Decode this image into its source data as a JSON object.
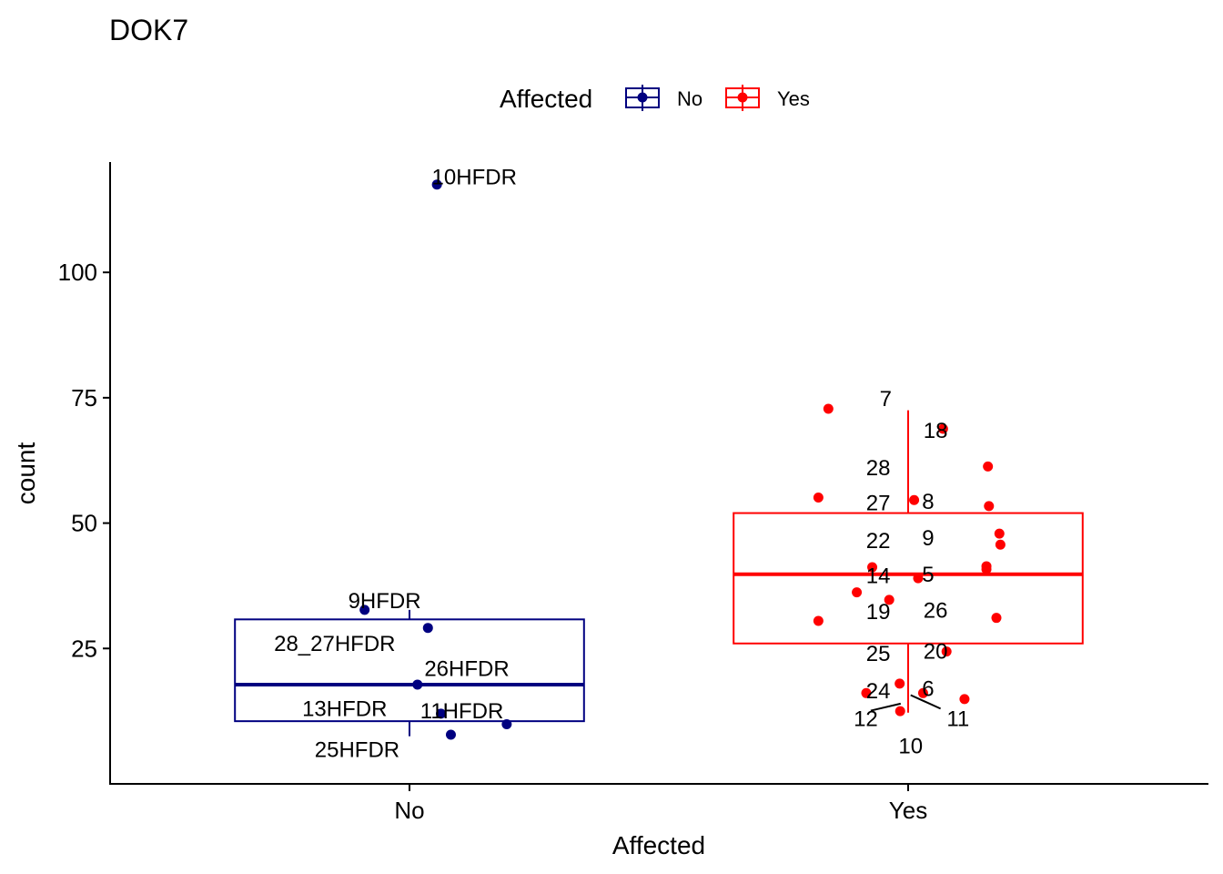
{
  "chart_data": {
    "type": "box",
    "title": "DOK7",
    "xlabel": "Affected",
    "ylabel": "count",
    "ylim": [
      -2,
      122
    ],
    "yticks": [
      25,
      50,
      75,
      100
    ],
    "grid": false,
    "legend": {
      "title": "Affected",
      "position": "top",
      "entries": [
        {
          "label": "No",
          "color": "#000080"
        },
        {
          "label": "Yes",
          "color": "#ff0000"
        }
      ]
    },
    "categories": [
      "No",
      "Yes"
    ],
    "series": [
      {
        "name": "No",
        "color": "#000080",
        "box": {
          "whisker_low": 7.5,
          "q1": 10.5,
          "median": 17.8,
          "q3": 30.8,
          "whisker_high": 32.7
        },
        "points": [
          {
            "x": -0.09,
            "y": 32.7,
            "label": "9HFDR",
            "lx": -0.05,
            "ly": 34.5
          },
          {
            "x": 0.037,
            "y": 29.1,
            "label": "28_27HFDR",
            "lx": -0.15,
            "ly": 26.0
          },
          {
            "x": 0.055,
            "y": 117.5,
            "label": "10HFDR",
            "lx": 0.13,
            "ly": 119.0
          },
          {
            "x": 0.016,
            "y": 17.8,
            "label": "26HFDR",
            "lx": 0.115,
            "ly": 21.0
          },
          {
            "x": 0.063,
            "y": 12.0,
            "label": "13HFDR",
            "lx": -0.13,
            "ly": 13.0
          },
          {
            "x": 0.195,
            "y": 9.9,
            "label": "11HFDR",
            "lx": 0.105,
            "ly": 12.5
          },
          {
            "x": 0.083,
            "y": 7.8,
            "label": "25HFDR",
            "lx": -0.105,
            "ly": 4.8
          }
        ]
      },
      {
        "name": "Yes",
        "color": "#ff0000",
        "box": {
          "whisker_low": 12.2,
          "q1": 26.0,
          "median": 39.8,
          "q3": 52.0,
          "whisker_high": 72.5
        },
        "points": [
          {
            "x": 1.0,
            "y": 72.8,
            "label": "7",
            "lx": 0.955,
            "ly": 74.8
          },
          {
            "x": 1.072,
            "y": 68.7,
            "label": "18",
            "lx": 1.055,
            "ly": 68.4
          },
          {
            "x": 1.0,
            "y": 61.3,
            "label": "28",
            "lx": 0.94,
            "ly": 61.0
          },
          {
            "x": 1.0,
            "y": 55.1,
            "label": "27",
            "lx": 0.94,
            "ly": 54.0
          },
          {
            "x": 1.0,
            "y": 54.6,
            "label": "8",
            "lx": 1.04,
            "ly": 54.3
          },
          {
            "x": 1.0,
            "y": 53.4,
            "label": "22",
            "lx": 0.94,
            "ly": 46.5
          },
          {
            "x": 1.0,
            "y": 47.9,
            "label": "9",
            "lx": 1.04,
            "ly": 47.0
          },
          {
            "x": 1.0,
            "y": 45.7,
            "label": "14",
            "lx": 0.94,
            "ly": 39.5
          },
          {
            "x": 1.0,
            "y": 41.2,
            "label": "5",
            "lx": 1.04,
            "ly": 39.8
          },
          {
            "x": 1.0,
            "y": 40.8,
            "label": "19",
            "lx": 0.94,
            "ly": 32.3
          },
          {
            "x": 1.0,
            "y": 39.0,
            "label": "26",
            "lx": 1.055,
            "ly": 32.6
          },
          {
            "x": 1.0,
            "y": 36.2,
            "label": "25",
            "lx": 0.94,
            "ly": 24.0
          },
          {
            "x": 1.0,
            "y": 34.7,
            "label": "20",
            "lx": 1.055,
            "ly": 24.4
          },
          {
            "x": 1.0,
            "y": 31.1,
            "label": "24",
            "lx": 0.94,
            "ly": 16.5
          },
          {
            "x": 1.0,
            "y": 30.5,
            "label": "6",
            "lx": 1.04,
            "ly": 17.0
          },
          {
            "x": 1.0,
            "y": 24.4,
            "label": "12",
            "lx": 0.915,
            "ly": 11.0
          },
          {
            "x": 1.0,
            "y": 18.0,
            "label": "11",
            "lx": 1.1,
            "ly": 11.0
          },
          {
            "x": 1.0,
            "y": 16.1,
            "label": "10",
            "lx": 1.005,
            "ly": 5.5
          }
        ],
        "extra_points": [
          {
            "x": -0.16,
            "y": 72.8
          },
          {
            "x": 0.16,
            "y": 61.3
          },
          {
            "x": -0.18,
            "y": 55.1
          },
          {
            "x": 0.012,
            "y": 54.6
          },
          {
            "x": 0.162,
            "y": 53.4
          },
          {
            "x": 0.183,
            "y": 47.9
          },
          {
            "x": 0.185,
            "y": 45.7
          },
          {
            "x": -0.072,
            "y": 41.2
          },
          {
            "x": 0.157,
            "y": 40.8
          },
          {
            "x": 0.157,
            "y": 41.4
          },
          {
            "x": 0.02,
            "y": 39.0
          },
          {
            "x": -0.103,
            "y": 36.2
          },
          {
            "x": -0.038,
            "y": 34.7
          },
          {
            "x": -0.18,
            "y": 30.5
          },
          {
            "x": 0.177,
            "y": 31.1
          },
          {
            "x": 0.077,
            "y": 24.4
          },
          {
            "x": -0.017,
            "y": 18.0
          },
          {
            "x": -0.084,
            "y": 16.1
          },
          {
            "x": 0.03,
            "y": 16.1
          },
          {
            "x": 0.113,
            "y": 14.9
          },
          {
            "x": -0.016,
            "y": 12.5
          },
          {
            "x": 0.07,
            "y": 68.8
          }
        ]
      }
    ],
    "label_connectors": [
      {
        "from": [
          0.985,
          14.0
        ],
        "to": [
          0.925,
          12.6
        ]
      },
      {
        "from": [
          1.005,
          15.7
        ],
        "to": [
          1.065,
          13.0
        ]
      }
    ]
  }
}
